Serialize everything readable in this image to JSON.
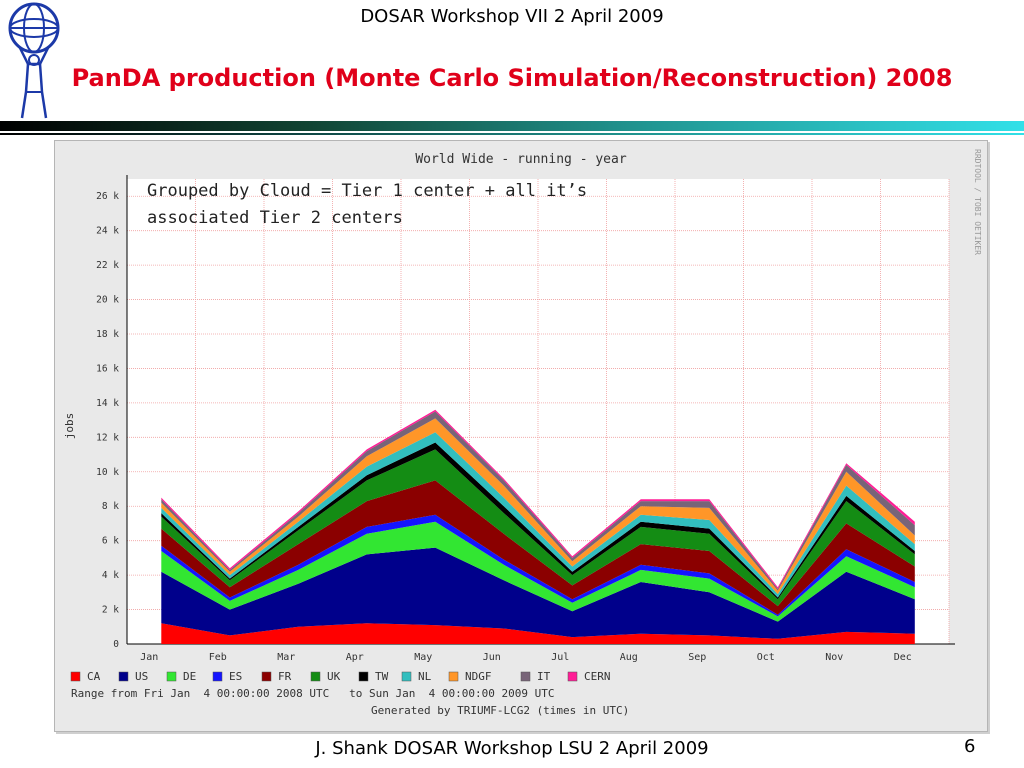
{
  "slide": {
    "header": "DOSAR Workshop VII 2 April 2009",
    "title": "PanDA production (Monte Carlo Simulation/Reconstruction) 2008",
    "footer": "J. Shank DOSAR Workshop LSU 2 April 2009",
    "page_number": "6",
    "annotation_line1": "Grouped by Cloud = Tier 1 center + all it’s",
    "annotation_line2": "associated Tier 2 centers"
  },
  "chart_data": {
    "type": "area",
    "title": "World Wide - running - year",
    "ylabel": "jobs",
    "ylim": [
      0,
      27000
    ],
    "yticks": [
      "0",
      "2 k",
      "4 k",
      "6 k",
      "8 k",
      "10 k",
      "12 k",
      "14 k",
      "16 k",
      "18 k",
      "20 k",
      "22 k",
      "24 k",
      "26 k"
    ],
    "categories": [
      "Jan",
      "Feb",
      "Mar",
      "Apr",
      "May",
      "Jun",
      "Jul",
      "Aug",
      "Sep",
      "Oct",
      "Nov",
      "Dec"
    ],
    "range_text": "Range from Fri Jan  4 00:00:00 2008 UTC   to Sun Jan  4 00:00:00 2009 UTC",
    "generated_text": "Generated by TRIUMF-LCG2 (times in UTC)",
    "side_text": "RRDTOOL / TOBI OETIKER",
    "legend": [
      {
        "name": "CA",
        "color": "#ff0000"
      },
      {
        "name": "US",
        "color": "#00008b"
      },
      {
        "name": "DE",
        "color": "#32e632"
      },
      {
        "name": "ES",
        "color": "#1414ff"
      },
      {
        "name": "FR",
        "color": "#8b0000"
      },
      {
        "name": "UK",
        "color": "#148c14"
      },
      {
        "name": "TW",
        "color": "#000000"
      },
      {
        "name": "NL",
        "color": "#32bebe"
      },
      {
        "name": "NDGF",
        "color": "#ff9628"
      },
      {
        "name": "IT",
        "color": "#786478"
      },
      {
        "name": "CERN",
        "color": "#ff1e96"
      }
    ],
    "series": [
      {
        "name": "CA",
        "values": [
          1200,
          500,
          1000,
          1200,
          1100,
          900,
          400,
          600,
          500,
          300,
          700,
          600
        ]
      },
      {
        "name": "US",
        "values": [
          3000,
          1500,
          2500,
          4000,
          4500,
          2800,
          1500,
          3000,
          2500,
          1000,
          3500,
          2000
        ]
      },
      {
        "name": "DE",
        "values": [
          1200,
          500,
          800,
          1200,
          1500,
          900,
          500,
          700,
          800,
          300,
          900,
          700
        ]
      },
      {
        "name": "ES",
        "values": [
          300,
          200,
          300,
          400,
          400,
          300,
          200,
          300,
          300,
          100,
          400,
          300
        ]
      },
      {
        "name": "FR",
        "values": [
          1000,
          600,
          1200,
          1500,
          2000,
          1500,
          800,
          1200,
          1300,
          500,
          1500,
          900
        ]
      },
      {
        "name": "UK",
        "values": [
          700,
          400,
          800,
          1200,
          1800,
          1200,
          600,
          1000,
          1000,
          400,
          1300,
          700
        ]
      },
      {
        "name": "TW",
        "values": [
          200,
          100,
          200,
          300,
          400,
          400,
          200,
          300,
          300,
          100,
          300,
          200
        ]
      },
      {
        "name": "NL",
        "values": [
          300,
          200,
          300,
          500,
          600,
          500,
          300,
          400,
          500,
          200,
          600,
          400
        ]
      },
      {
        "name": "NDGF",
        "values": [
          300,
          200,
          300,
          600,
          800,
          700,
          300,
          500,
          700,
          200,
          800,
          500
        ]
      },
      {
        "name": "IT",
        "values": [
          200,
          100,
          200,
          300,
          400,
          300,
          200,
          300,
          400,
          100,
          400,
          600
        ]
      },
      {
        "name": "CERN",
        "values": [
          100,
          100,
          100,
          100,
          100,
          100,
          100,
          100,
          100,
          100,
          100,
          200
        ]
      }
    ]
  }
}
